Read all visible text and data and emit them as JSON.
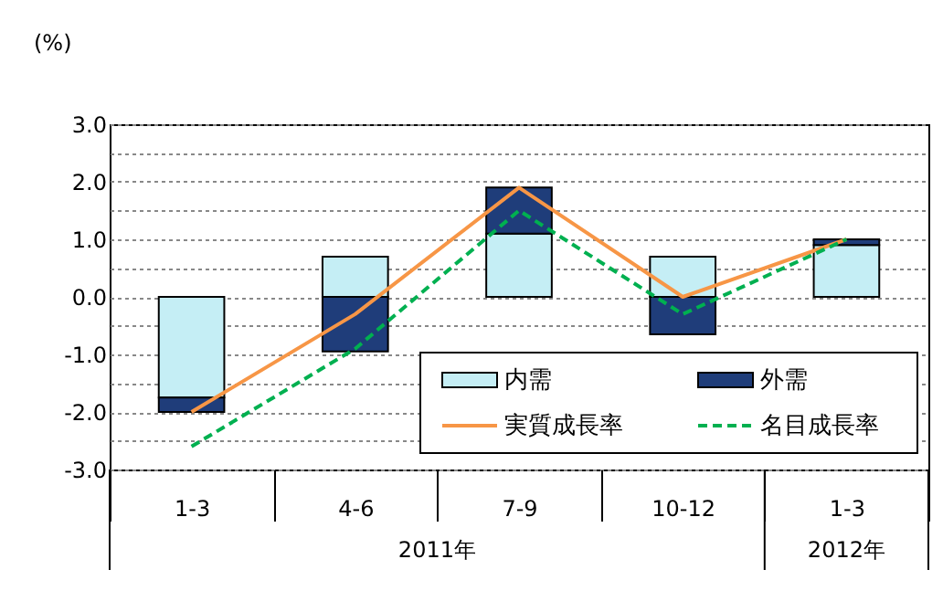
{
  "chart_data": {
    "type": "bar",
    "ylabel": "(%)",
    "categories": [
      "1-3",
      "4-6",
      "7-9",
      "10-12",
      "1-3"
    ],
    "stacked": true,
    "series": [
      {
        "name": "内需",
        "type": "bar",
        "color": "#c5eef5",
        "values": [
          -1.75,
          0.7,
          1.1,
          0.7,
          0.9
        ]
      },
      {
        "name": "外需",
        "type": "bar",
        "color": "#1f3d7a",
        "values": [
          -0.25,
          -0.95,
          0.8,
          -0.65,
          0.1
        ]
      },
      {
        "name": "実質成長率",
        "type": "line",
        "color": "#f79646",
        "line_style": "solid",
        "values": [
          -2.0,
          -0.3,
          1.9,
          0.0,
          1.0
        ]
      },
      {
        "name": "名目成長率",
        "type": "line",
        "color": "#00b050",
        "line_style": "dashed",
        "values": [
          -2.6,
          -0.9,
          1.5,
          -0.3,
          1.0
        ]
      }
    ],
    "ylim": [
      -3,
      3
    ],
    "yticks": [
      {
        "value": -3,
        "label": "-3.0"
      },
      {
        "value": -2.5,
        "label": null
      },
      {
        "value": -2,
        "label": "-2.0"
      },
      {
        "value": -1.5,
        "label": null
      },
      {
        "value": -1,
        "label": "-1.0"
      },
      {
        "value": -0.5,
        "label": null
      },
      {
        "value": 0,
        "label": "0.0"
      },
      {
        "value": 0.5,
        "label": null
      },
      {
        "value": 1,
        "label": "1.0"
      },
      {
        "value": 1.5,
        "label": null
      },
      {
        "value": 2,
        "label": "2.0"
      },
      {
        "value": 2.5,
        "label": null
      },
      {
        "value": 3,
        "label": "3.0"
      }
    ],
    "grid": "y",
    "legend": "bottom right",
    "annotations": [
      "2011年",
      "2012年"
    ]
  }
}
